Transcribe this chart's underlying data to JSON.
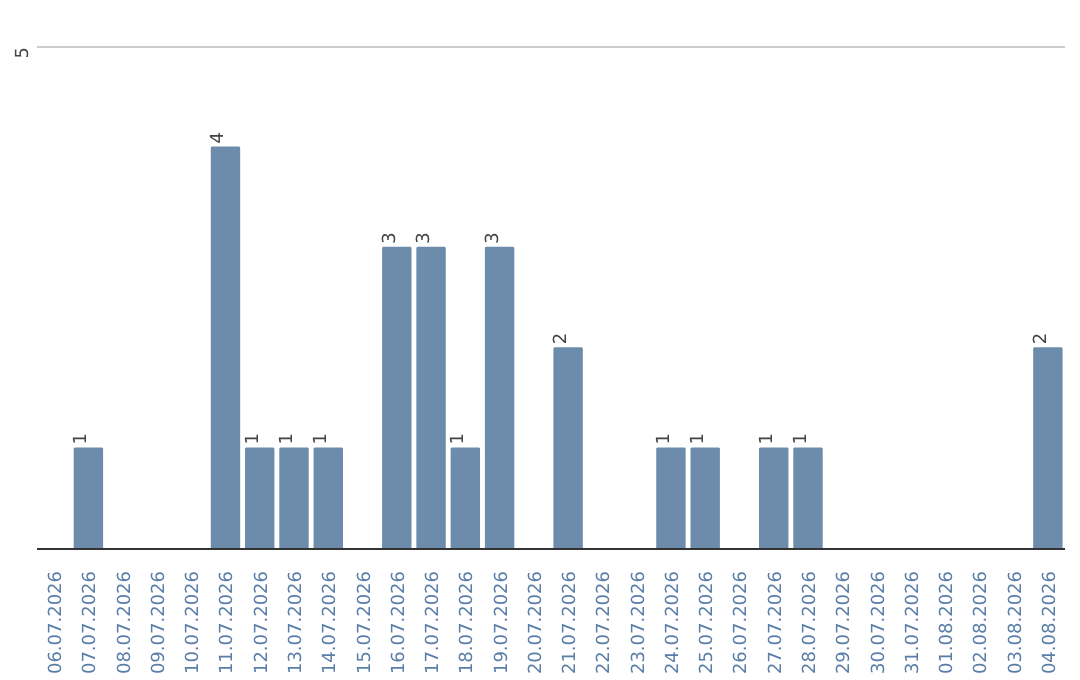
{
  "chart_data": {
    "type": "bar",
    "categories": [
      "06.07.2026",
      "07.07.2026",
      "08.07.2026",
      "09.07.2026",
      "10.07.2026",
      "11.07.2026",
      "12.07.2026",
      "13.07.2026",
      "14.07.2026",
      "15.07.2026",
      "16.07.2026",
      "17.07.2026",
      "18.07.2026",
      "19.07.2026",
      "20.07.2026",
      "21.07.2026",
      "22.07.2026",
      "23.07.2026",
      "24.07.2026",
      "25.07.2026",
      "26.07.2026",
      "27.07.2026",
      "28.07.2026",
      "29.07.2026",
      "30.07.2026",
      "31.07.2026",
      "01.08.2026",
      "02.08.2026",
      "03.08.2026",
      "04.08.2026"
    ],
    "values": [
      0,
      1,
      0,
      0,
      0,
      4,
      1,
      1,
      1,
      0,
      3,
      3,
      1,
      3,
      0,
      2,
      0,
      0,
      1,
      1,
      0,
      1,
      1,
      0,
      0,
      0,
      0,
      0,
      0,
      2
    ],
    "value_labels": [
      null,
      "1",
      null,
      null,
      null,
      "4",
      "1",
      "1",
      "1",
      null,
      "3",
      "3",
      "1",
      "3",
      null,
      "2",
      null,
      null,
      "1",
      "1",
      null,
      "1",
      "1",
      null,
      null,
      null,
      null,
      null,
      null,
      "2"
    ],
    "color": "#6d8cab",
    "ylim": [
      0,
      5
    ],
    "yticks": [
      5
    ],
    "ref_lines": [
      {
        "axis": "y",
        "value": 5,
        "color": "#cccccc"
      }
    ]
  }
}
